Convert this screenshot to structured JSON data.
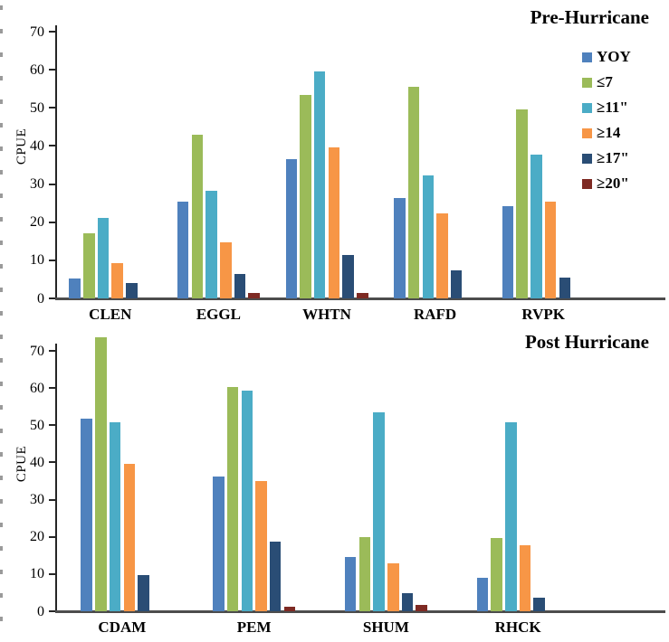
{
  "chart_data": [
    {
      "type": "bar",
      "title": "Pre-Hurricane",
      "ylabel": "CPUE",
      "xlabel": "",
      "ylim": [
        0,
        71.5
      ],
      "yticks": [
        0,
        10,
        20,
        30,
        40,
        50,
        60,
        70
      ],
      "grid": false,
      "legend": {
        "visible": true,
        "position": "upper-right"
      },
      "categories": [
        "CLEN",
        "EGGL",
        "WHTN",
        "RAFD",
        "RVPK"
      ],
      "series": [
        {
          "name": "YOY",
          "color": "#4F81BD",
          "values": [
            5.3,
            25.3,
            36.6,
            26.3,
            24.2
          ]
        },
        {
          "name": "≤7",
          "color": "#9BBB59",
          "values": [
            17.2,
            43.0,
            53.5,
            55.5,
            49.6
          ]
        },
        {
          "name": "≥11\"",
          "color": "#4BACC6",
          "values": [
            21.2,
            28.3,
            59.5,
            32.3,
            37.7
          ]
        },
        {
          "name": "≥14",
          "color": "#F79646",
          "values": [
            9.2,
            14.8,
            39.6,
            22.3,
            25.4
          ]
        },
        {
          "name": "≥17\"",
          "color": "#2A4D75",
          "values": [
            4.0,
            6.5,
            11.4,
            7.4,
            5.5
          ]
        },
        {
          "name": "≥20\"",
          "color": "#7E2A23",
          "values": [
            0,
            1.5,
            1.5,
            0,
            0
          ]
        }
      ]
    },
    {
      "type": "bar",
      "title": "Post Hurricane",
      "ylabel": "CPUE",
      "xlabel": "",
      "ylim": [
        0,
        72
      ],
      "yticks": [
        0,
        10,
        20,
        30,
        40,
        50,
        60,
        70
      ],
      "grid": false,
      "legend": {
        "visible": false,
        "position": "none"
      },
      "categories": [
        "CDAM",
        "PEM",
        "SHUM",
        "RHCK"
      ],
      "series": [
        {
          "name": "YOY",
          "color": "#4F81BD",
          "values": [
            51.7,
            36.3,
            14.6,
            8.9
          ]
        },
        {
          "name": "≤7",
          "color": "#9BBB59",
          "values": [
            73.7,
            60.3,
            19.9,
            19.8
          ]
        },
        {
          "name": "≥11\"",
          "color": "#4BACC6",
          "values": [
            50.7,
            59.3,
            53.4,
            50.7
          ]
        },
        {
          "name": "≥14",
          "color": "#F79646",
          "values": [
            39.6,
            35.1,
            12.9,
            17.8
          ]
        },
        {
          "name": "≥17\"",
          "color": "#2A4D75",
          "values": [
            9.8,
            18.8,
            4.8,
            3.7
          ]
        },
        {
          "name": "≥20\"",
          "color": "#7E2A23",
          "values": [
            0,
            1.2,
            1.8,
            0
          ]
        }
      ]
    }
  ]
}
